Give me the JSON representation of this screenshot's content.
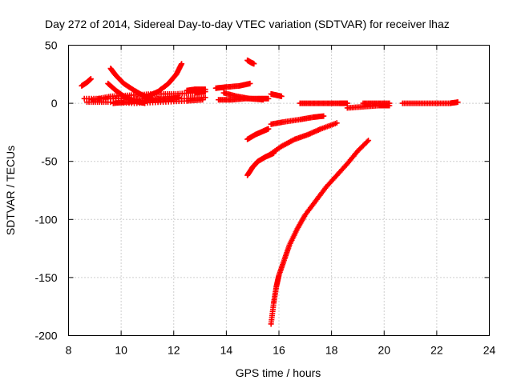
{
  "chart_data": {
    "type": "scatter",
    "title": "Day 272 of 2014, Sidereal Day-to-day VTEC variation (SDTVAR) for receiver lhaz",
    "xlabel": "GPS time / hours",
    "ylabel": "SDTVAR / TECUs",
    "xlim": [
      8,
      24
    ],
    "ylim": [
      -200,
      50
    ],
    "xticks": [
      8,
      10,
      12,
      14,
      16,
      18,
      20,
      22,
      24
    ],
    "yticks": [
      -200,
      -150,
      -100,
      -50,
      0,
      50
    ],
    "grid": true,
    "marker": "+",
    "color": "#ff0000",
    "segments": [
      {
        "x": [
          8.5,
          8.7,
          8.85
        ],
        "y": [
          15,
          18,
          21
        ]
      },
      {
        "x": [
          8.6,
          9.5,
          10.5,
          11.5,
          12.5,
          13.2
        ],
        "y": [
          4,
          4,
          4,
          4,
          4,
          5
        ]
      },
      {
        "x": [
          8.7,
          9.5,
          10.5,
          11.5,
          12.5,
          13.1
        ],
        "y": [
          1,
          1,
          0,
          1,
          2,
          3
        ]
      },
      {
        "x": [
          8.9,
          9.6,
          10.4,
          11.2,
          12.0,
          12.8,
          13.2
        ],
        "y": [
          3,
          6,
          7,
          8,
          8,
          9,
          10
        ]
      },
      {
        "x": [
          9.7,
          10.2,
          10.8,
          11.3,
          11.8,
          12.2
        ],
        "y": [
          0,
          1,
          2,
          3,
          4,
          5
        ]
      },
      {
        "x": [
          9.5,
          9.8,
          10.1,
          10.5,
          10.9
        ],
        "y": [
          17,
          11,
          6,
          2,
          0
        ]
      },
      {
        "x": [
          9.6,
          9.8,
          10.1,
          10.5,
          10.8,
          11.2
        ],
        "y": [
          30,
          24,
          17,
          11,
          7,
          4
        ]
      },
      {
        "x": [
          11.0,
          11.4,
          11.8,
          12.1,
          12.3
        ],
        "y": [
          6,
          10,
          17,
          25,
          34
        ]
      },
      {
        "x": [
          12.5,
          12.8,
          13.2
        ],
        "y": [
          11,
          12,
          12
        ]
      },
      {
        "x": [
          13.6,
          14.0,
          14.5,
          14.9
        ],
        "y": [
          13,
          14,
          15,
          17
        ]
      },
      {
        "x": [
          13.7,
          14.2,
          14.7,
          15.2,
          15.6
        ],
        "y": [
          3,
          3,
          4,
          4,
          4
        ]
      },
      {
        "x": [
          13.9,
          14.4,
          14.9,
          15.4
        ],
        "y": [
          9,
          6,
          4,
          3
        ]
      },
      {
        "x": [
          14.8,
          14.95,
          15.05
        ],
        "y": [
          37,
          35,
          34
        ]
      },
      {
        "x": [
          15.7,
          15.9,
          16.1
        ],
        "y": [
          8,
          7,
          6
        ]
      },
      {
        "x": [
          16.8,
          17.3,
          17.8,
          18.3,
          18.6
        ],
        "y": [
          0,
          0,
          0,
          0,
          0
        ]
      },
      {
        "x": [
          18.6,
          19.2,
          19.8,
          20.2
        ],
        "y": [
          -4,
          -3,
          -2,
          -2
        ]
      },
      {
        "x": [
          19.2,
          19.7,
          20.2
        ],
        "y": [
          0,
          0,
          0
        ]
      },
      {
        "x": [
          20.7,
          21.3,
          21.9,
          22.5,
          22.8
        ],
        "y": [
          0,
          0,
          0,
          0,
          1
        ]
      },
      {
        "x": [
          14.8,
          15.1,
          15.4,
          15.6
        ],
        "y": [
          -31,
          -27,
          -24,
          -22
        ]
      },
      {
        "x": [
          15.7,
          16.2,
          16.8,
          17.3,
          17.7
        ],
        "y": [
          -18,
          -16,
          -14,
          -12,
          -11
        ]
      },
      {
        "x": [
          14.8,
          15.0,
          15.2,
          15.5,
          15.8
        ],
        "y": [
          -62,
          -55,
          -50,
          -46,
          -43
        ]
      },
      {
        "x": [
          15.6,
          16.1,
          16.6,
          17.1,
          17.6,
          18.2
        ],
        "y": [
          -45,
          -37,
          -31,
          -27,
          -22,
          -17
        ]
      },
      {
        "x": [
          15.7,
          15.8,
          15.9,
          16.0,
          16.2,
          16.4,
          16.7,
          17.0,
          17.4,
          17.8,
          18.2,
          18.6,
          19.0,
          19.4
        ],
        "y": [
          -190,
          -172,
          -158,
          -148,
          -135,
          -122,
          -108,
          -96,
          -84,
          -72,
          -62,
          -52,
          -41,
          -32
        ]
      }
    ]
  }
}
